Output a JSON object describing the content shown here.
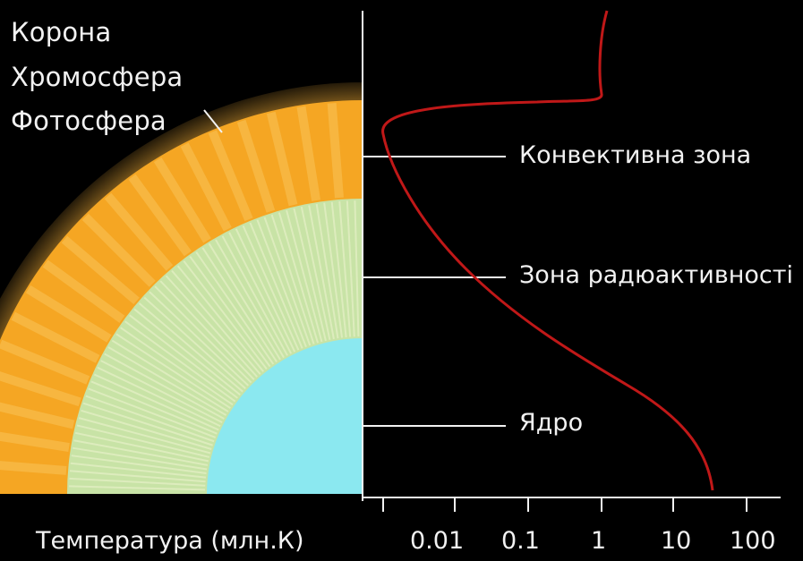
{
  "layers": {
    "corona": "Корона",
    "chromosphere": "Хромосфера",
    "photosphere": "Фотосфера"
  },
  "zones": {
    "convective": "Конвективна зона",
    "radiative": "Зона радюактивності",
    "core": "Ядро"
  },
  "axis": {
    "title": "Температура (млн.К)",
    "ticks": [
      "0.01",
      "0.1",
      "1",
      "10",
      "100"
    ],
    "scale": "log"
  },
  "colors": {
    "background": "#000000",
    "convective_zone": "#f5a623",
    "convective_cells": "#f7c35a",
    "radiative_zone": "#c8e3a6",
    "core": "#8be8f0",
    "temperature_curve": "#c01818",
    "text": "#f2f2f2"
  }
}
